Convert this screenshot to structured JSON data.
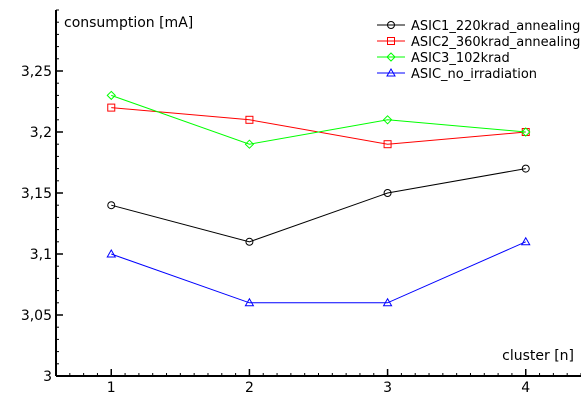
{
  "chart_data": {
    "type": "line",
    "title": "",
    "xlabel": "cluster [n]",
    "ylabel": "consumption [mA]",
    "x": [
      1,
      2,
      3,
      4
    ],
    "xlim": [
      0.6,
      4.4
    ],
    "ylim": [
      3.0,
      3.3
    ],
    "x_ticks": [
      "1",
      "2",
      "3",
      "4"
    ],
    "y_ticks": [
      "3",
      "3,05",
      "3,1",
      "3,15",
      "3,2",
      "3,25"
    ],
    "y_tick_values": [
      3.0,
      3.05,
      3.1,
      3.15,
      3.2,
      3.25
    ],
    "grid": false,
    "legend_position": "top-right",
    "series": [
      {
        "name": "ASIC1_220krad_annealing",
        "values": [
          3.14,
          3.11,
          3.15,
          3.17
        ],
        "color": "#000000",
        "marker": "circle"
      },
      {
        "name": "ASIC2_360krad_annealing",
        "values": [
          3.22,
          3.21,
          3.19,
          3.2
        ],
        "color": "#ff0000",
        "marker": "square"
      },
      {
        "name": "ASIC3_102krad",
        "values": [
          3.23,
          3.19,
          3.21,
          3.2
        ],
        "color": "#00ff00",
        "marker": "diamond"
      },
      {
        "name": "ASIC_no_irradiation",
        "values": [
          3.1,
          3.06,
          3.06,
          3.11
        ],
        "color": "#0000ff",
        "marker": "triangle"
      }
    ]
  }
}
